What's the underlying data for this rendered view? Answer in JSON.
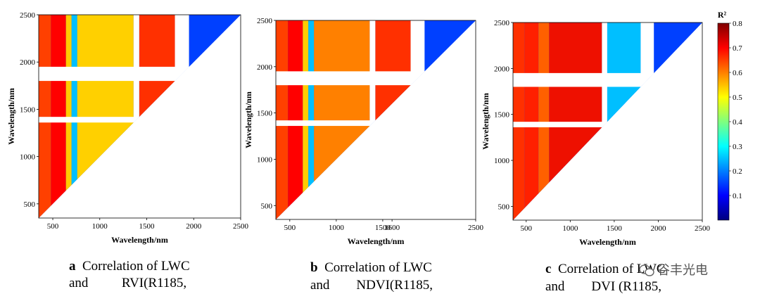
{
  "chart_data": [
    {
      "type": "heatmap",
      "xlabel": "Wavelength/nm",
      "ylabel": "Wavelength/nm",
      "xticks": [
        500,
        1000,
        1500,
        2000,
        2500
      ],
      "yticks": [
        500,
        1000,
        1500,
        2000,
        2500
      ],
      "xlim": [
        350,
        2500
      ],
      "ylim": [
        350,
        2500
      ],
      "caption_letter": "a",
      "caption_line1": "Correlation of LWC",
      "caption_line2": "and          RVI(R1185,"
    },
    {
      "type": "heatmap",
      "xlabel": "Wavelength/nm",
      "ylabel": "Wavelength/nm",
      "xticks": [
        500,
        1000,
        1500,
        1600,
        2500
      ],
      "yticks": [
        500,
        1000,
        1500,
        2000,
        2500
      ],
      "xlim": [
        350,
        2500
      ],
      "ylim": [
        350,
        2500
      ],
      "caption_letter": "b",
      "caption_line1": "Correlation of LWC",
      "caption_line2": "and        NDVI(R1185,"
    },
    {
      "type": "heatmap",
      "xlabel": "Wavelength/nm",
      "ylabel": "Wavelength/nm",
      "xticks": [
        500,
        1000,
        1500,
        2000,
        2500
      ],
      "yticks": [
        500,
        1000,
        1500,
        2000,
        2500
      ],
      "xlim": [
        350,
        2500
      ],
      "ylim": [
        350,
        2500
      ],
      "caption_letter": "c",
      "caption_line1": "Correlation of LWC",
      "caption_line2": "and        DVI (R1185,"
    }
  ],
  "colorbar": {
    "label": "R²",
    "ticks": [
      "0.1",
      "0.2",
      "0.3",
      "0.4",
      "0.5",
      "0.6",
      "0.7",
      "0.8"
    ],
    "min": 0,
    "max": 0.8,
    "colors": [
      "#00007f",
      "#0000ff",
      "#007fff",
      "#00ffff",
      "#7fff7f",
      "#ffff00",
      "#ff7f00",
      "#ff0000",
      "#7f0000"
    ]
  },
  "watermark": "谷丰光电"
}
